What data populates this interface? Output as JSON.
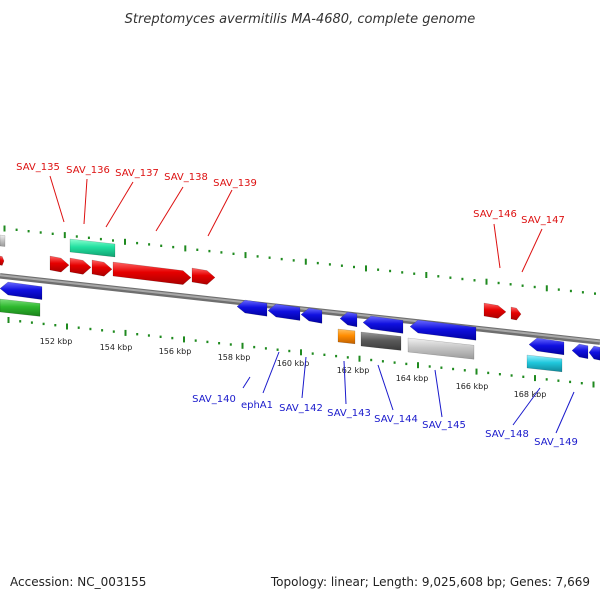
{
  "title": "Streptomyces avermitilis MA-4680, complete genome",
  "footer": {
    "accession_label": "Accession: NC_003155",
    "summary_label": "Topology: linear; Length: 9,025,608 bp; Genes: 7,669"
  },
  "colors": {
    "backbone": "#8c8c8c",
    "tick": "#1f8a1f",
    "top_label": "#dd1111",
    "bottom_label": "#1a1acc"
  },
  "scale_labels": [
    "152 kbp",
    "154 kbp",
    "156 kbp",
    "158 kbp",
    "160 kbp",
    "162 kbp",
    "164 kbp",
    "166 kbp",
    "168 kbp"
  ],
  "top_gene_labels": [
    "SAV_135",
    "SAV_136",
    "SAV_137",
    "SAV_138",
    "SAV_139",
    "SAV_146",
    "SAV_147"
  ],
  "bottom_gene_labels": [
    "SAV_140",
    "ephA1",
    "SAV_142",
    "SAV_143",
    "SAV_144",
    "SAV_145",
    "SAV_148",
    "SAV_149"
  ]
}
